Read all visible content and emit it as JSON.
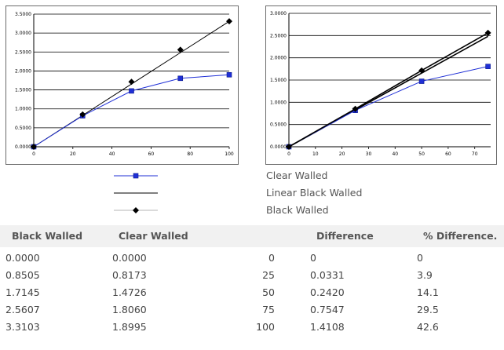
{
  "chart_data": [
    {
      "type": "line",
      "x": [
        0,
        25,
        50,
        75,
        100
      ],
      "xlim": [
        0,
        100
      ],
      "x_ticks": [
        "0",
        "20",
        "40",
        "60",
        "80",
        "100"
      ],
      "ylim": [
        0,
        3.5
      ],
      "y_ticks": [
        "0.0000",
        "0.5000",
        "1.0000",
        "1.5000",
        "2.0000",
        "2.5000",
        "3.0000",
        "3.5000"
      ],
      "grid": "horizontal",
      "series": [
        {
          "name": "Clear Walled",
          "values": [
            0,
            0.8173,
            1.4726,
            1.806,
            1.8995
          ],
          "color": "#1f2fd6",
          "marker": "square"
        },
        {
          "name": "Linear Black Walled",
          "values": [
            0,
            0.8276,
            1.6552,
            2.4827,
            3.3103
          ],
          "color": "#000000",
          "marker": "none"
        },
        {
          "name": "Black Walled",
          "values": [
            0,
            0.8505,
            1.7145,
            2.5607,
            3.3103
          ],
          "color": "#000000",
          "marker": "diamond",
          "line": false
        }
      ]
    },
    {
      "type": "line",
      "x": [
        0,
        25,
        50,
        75
      ],
      "xlim": [
        0,
        76
      ],
      "x_ticks": [
        "0",
        "10",
        "20",
        "30",
        "40",
        "50",
        "60",
        "70"
      ],
      "ylim": [
        0,
        3.0
      ],
      "y_ticks": [
        "0.0000",
        "0.5000",
        "1.0000",
        "1.5000",
        "2.0000",
        "2.5000",
        "3.0000"
      ],
      "grid": "horizontal",
      "series": [
        {
          "name": "Clear Walled",
          "values": [
            0,
            0.8173,
            1.4726,
            1.806
          ],
          "color": "#1f2fd6",
          "marker": "square"
        },
        {
          "name": "Linear Black Walled",
          "values": [
            0,
            0.8276,
            1.6552,
            2.4827
          ],
          "color": "#000000",
          "marker": "none"
        },
        {
          "name": "Black Walled",
          "values": [
            0,
            0.8505,
            1.7145,
            2.5607
          ],
          "color": "#000000",
          "marker": "diamond"
        }
      ]
    }
  ],
  "legend": {
    "items": [
      {
        "label": "Clear Walled",
        "color": "#1f2fd6",
        "marker": "square-icon"
      },
      {
        "label": "Linear Black Walled",
        "color": "#000000",
        "marker": "none"
      },
      {
        "label": "Black Walled",
        "color": "#000000",
        "marker": "diamond-icon"
      }
    ]
  },
  "table": {
    "headers": {
      "black": "Black Walled",
      "clear": "Clear Walled",
      "diff": "Difference",
      "pct": "% Difference."
    },
    "rows": [
      {
        "black": "0.0000",
        "clear": "0.0000",
        "x": "0",
        "diff": "0",
        "pct": "0"
      },
      {
        "black": "0.8505",
        "clear": "0.8173",
        "x": "25",
        "diff": "0.0331",
        "pct": "3.9"
      },
      {
        "black": "1.7145",
        "clear": "1.4726",
        "x": "50",
        "diff": "0.2420",
        "pct": "14.1"
      },
      {
        "black": "2.5607",
        "clear": "1.8060",
        "x": "75",
        "diff": "0.7547",
        "pct": "29.5"
      },
      {
        "black": "3.3103",
        "clear": "1.8995",
        "x": "100",
        "diff": "1.4108",
        "pct": "42.6"
      }
    ]
  }
}
